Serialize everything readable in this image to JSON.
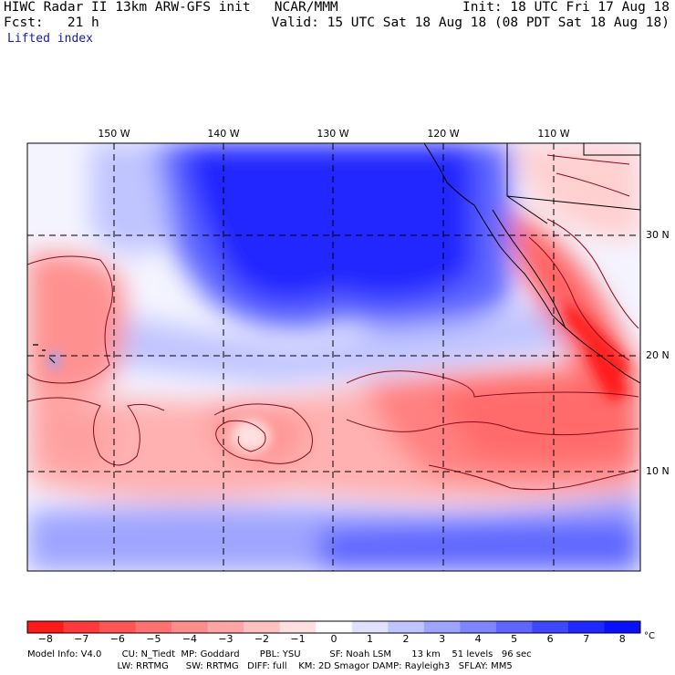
{
  "header": {
    "left_line1": "HIWC Radar II 13km ARW-GFS init   NCAR/MMM",
    "left_line2": "Fcst:   21 h",
    "left_line3": "Lifted index",
    "right_line1": "Init: 18 UTC Fri 17 Aug 18",
    "right_line2": "Valid: 15 UTC Sat 18 Aug 18 (08 PDT Sat 18 Aug 18)"
  },
  "map": {
    "lon_labels": [
      "150 W",
      "140 W",
      "130 W",
      "120 W",
      "110 W"
    ],
    "lat_labels": [
      "30 N",
      "20 N",
      "10 N"
    ]
  },
  "colorbar": {
    "colors": [
      "#ff1a1a",
      "#ff3a3a",
      "#ff5555",
      "#ff7070",
      "#ff8c8c",
      "#ffa5a5",
      "#ffc0c0",
      "#ffe0e0",
      "#ffffff",
      "#dfe1ff",
      "#c0c4ff",
      "#9fa4ff",
      "#7f85ff",
      "#5f66ff",
      "#3f47ff",
      "#2028ff",
      "#0a10ff"
    ],
    "ticks": [
      "−8",
      "−7",
      "−6",
      "−5",
      "−4",
      "−3",
      "−2",
      "−1",
      "0",
      "1",
      "2",
      "3",
      "4",
      "5",
      "6",
      "7",
      "8"
    ],
    "unit": "°C"
  },
  "footer": {
    "line1": "Model Info: V4.0       CU: N_Tiedt  MP: Goddard       PBL: YSU          SF: Noah LSM       13 km    51 levels   96 sec",
    "line2": "                               LW: RRTMG      SW: RRTMG   DIFF: full    KM: 2D Smagor DAMP: Rayleigh3   SFLAY: MM5"
  }
}
